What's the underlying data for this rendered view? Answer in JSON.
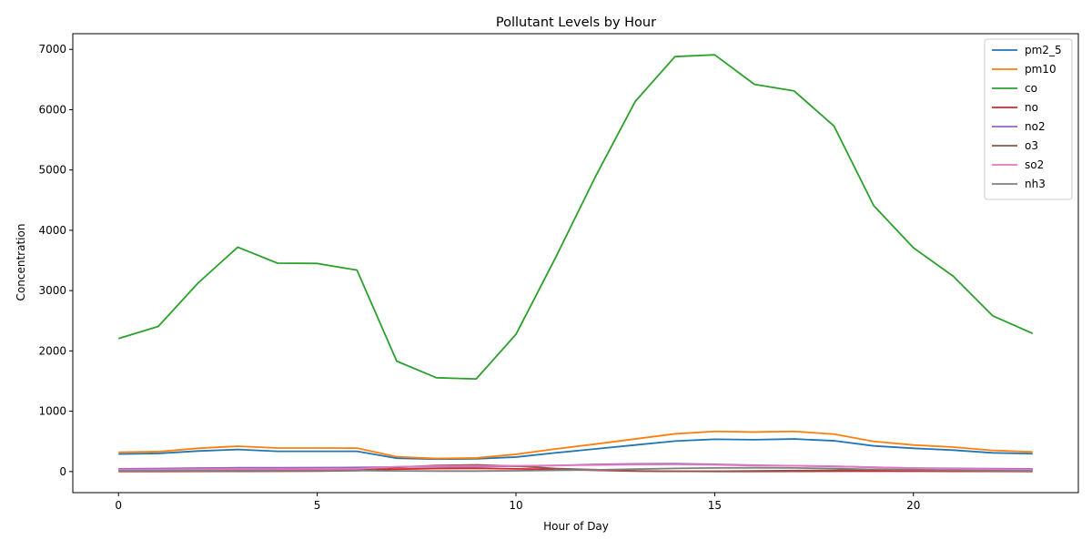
{
  "chart_data": {
    "type": "line",
    "title": "Pollutant Levels by Hour",
    "xlabel": "Hour of Day",
    "ylabel": "Concentration",
    "xlim": [
      -1.15,
      24.15
    ],
    "ylim": [
      -350,
      7260
    ],
    "xticks": [
      0,
      5,
      10,
      15,
      20
    ],
    "yticks": [
      0,
      1000,
      2000,
      3000,
      4000,
      5000,
      6000,
      7000
    ],
    "grid": false,
    "legend_position": "upper right",
    "x": [
      0,
      1,
      2,
      3,
      4,
      5,
      6,
      7,
      8,
      9,
      10,
      11,
      12,
      13,
      14,
      15,
      16,
      17,
      18,
      19,
      20,
      21,
      22,
      23
    ],
    "series": [
      {
        "name": "pm2_5",
        "color": "#1f77b4",
        "values": [
          290,
          300,
          340,
          365,
          335,
          335,
          335,
          220,
          205,
          210,
          240,
          310,
          375,
          440,
          505,
          535,
          528,
          540,
          510,
          425,
          385,
          355,
          310,
          295
        ]
      },
      {
        "name": "pm10",
        "color": "#ff7f0e",
        "values": [
          320,
          330,
          385,
          420,
          390,
          390,
          388,
          245,
          215,
          225,
          285,
          375,
          455,
          540,
          625,
          665,
          655,
          665,
          620,
          500,
          440,
          405,
          350,
          325
        ]
      },
      {
        "name": "co",
        "color": "#2ca02c",
        "values": [
          2205,
          2405,
          3125,
          3720,
          3455,
          3450,
          3340,
          1830,
          1555,
          1535,
          2275,
          3550,
          4890,
          6135,
          6880,
          6910,
          6420,
          6310,
          5730,
          4410,
          3710,
          3240,
          2580,
          2290
        ]
      },
      {
        "name": "no",
        "color": "#d62728",
        "values": [
          2,
          2,
          3,
          4,
          5,
          8,
          15,
          40,
          50,
          55,
          45,
          35,
          20,
          8,
          3,
          2,
          2,
          3,
          5,
          6,
          5,
          4,
          3,
          2
        ]
      },
      {
        "name": "no2",
        "color": "#9467bd",
        "values": [
          45,
          50,
          58,
          62,
          62,
          65,
          68,
          75,
          80,
          82,
          88,
          100,
          118,
          128,
          130,
          120,
          105,
          95,
          85,
          70,
          58,
          52,
          48,
          45
        ]
      },
      {
        "name": "o3",
        "color": "#8c564b",
        "values": [
          20,
          15,
          10,
          5,
          15,
          25,
          40,
          70,
          100,
          110,
          90,
          50,
          30,
          10,
          5,
          5,
          10,
          15,
          20,
          30,
          35,
          30,
          25,
          20
        ]
      },
      {
        "name": "so2",
        "color": "#e377c2",
        "values": [
          30,
          32,
          38,
          40,
          40,
          42,
          44,
          80,
          90,
          92,
          95,
          100,
          108,
          115,
          118,
          110,
          98,
          95,
          88,
          70,
          55,
          45,
          38,
          32
        ]
      },
      {
        "name": "nh3",
        "color": "#7f7f7f",
        "values": [
          10,
          10,
          12,
          14,
          14,
          15,
          16,
          10,
          8,
          8,
          12,
          20,
          28,
          40,
          52,
          60,
          62,
          60,
          50,
          35,
          25,
          20,
          14,
          10
        ]
      }
    ]
  }
}
